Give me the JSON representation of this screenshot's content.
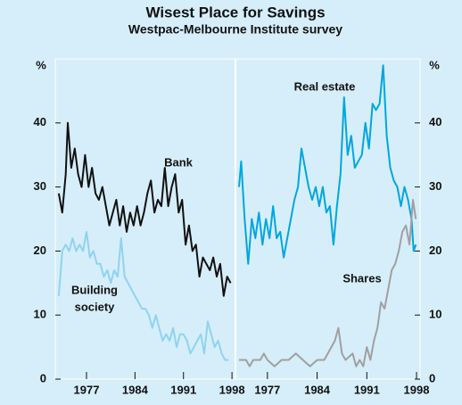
{
  "chart_data": [
    {
      "type": "line",
      "title": "Wisest Place for Savings",
      "subtitle": "Westpac-Melbourne Institute survey",
      "ylabel": "%",
      "xlim": [
        1972.5,
        1998.5
      ],
      "ylim": [
        0,
        50
      ],
      "xticks": [
        1977,
        1984,
        1991,
        1998
      ],
      "yticks": [
        0,
        10,
        20,
        30,
        40
      ],
      "series": [
        {
          "name": "Bank",
          "color": "#111111",
          "x": [
            1973,
            1973.5,
            1974,
            1974.3,
            1974.8,
            1975.3,
            1975.8,
            1976.3,
            1976.8,
            1977.3,
            1977.8,
            1978.3,
            1978.8,
            1979.3,
            1979.8,
            1980.3,
            1980.8,
            1981.3,
            1981.8,
            1982.3,
            1982.8,
            1983.3,
            1983.8,
            1984.3,
            1984.8,
            1985.3,
            1985.8,
            1986.3,
            1986.8,
            1987.3,
            1987.8,
            1988.3,
            1988.8,
            1989.3,
            1989.8,
            1990.3,
            1990.8,
            1991.3,
            1991.8,
            1992.3,
            1992.8,
            1993.3,
            1993.8,
            1994.3,
            1994.8,
            1995.3,
            1995.8,
            1996.3,
            1996.8,
            1997.3,
            1997.8
          ],
          "values": [
            29,
            26,
            32,
            40,
            33,
            36,
            32,
            30,
            35,
            30,
            33,
            29,
            28,
            30,
            27,
            24,
            26,
            28,
            24,
            27,
            23,
            26,
            24,
            27,
            24,
            26,
            29,
            31,
            26,
            28,
            27,
            33,
            27,
            30,
            32,
            26,
            28,
            21,
            24,
            20,
            21,
            16,
            19,
            18,
            17,
            19,
            16,
            18,
            13,
            16,
            15
          ]
        },
        {
          "name": "Building society",
          "color": "#8fd3f0",
          "x": [
            1973,
            1973.5,
            1974,
            1974.5,
            1975,
            1975.5,
            1976,
            1976.5,
            1977,
            1977.5,
            1978,
            1978.5,
            1979,
            1979.5,
            1980,
            1980.5,
            1981,
            1981.5,
            1982,
            1982.5,
            1983,
            1983.5,
            1984,
            1984.5,
            1985,
            1985.5,
            1986,
            1986.5,
            1987,
            1987.5,
            1988,
            1988.5,
            1989,
            1989.5,
            1990,
            1990.5,
            1991,
            1991.5,
            1992,
            1992.5,
            1993,
            1993.5,
            1994,
            1994.5,
            1995,
            1995.5,
            1996,
            1996.5,
            1997,
            1997.5
          ],
          "values": [
            13,
            20,
            21,
            20,
            22,
            20,
            21,
            20,
            23,
            19,
            20,
            18,
            18,
            16,
            17,
            15,
            17,
            16,
            22,
            16,
            15,
            14,
            13,
            12,
            11,
            11,
            10,
            8,
            10,
            8,
            6,
            7,
            6,
            8,
            5,
            7,
            7,
            6,
            4,
            5,
            6,
            7,
            4,
            9,
            7,
            5,
            6,
            4,
            3,
            3
          ]
        }
      ],
      "annotations": [
        {
          "text": "Bank"
        },
        {
          "lines": [
            "Building",
            "society"
          ]
        }
      ]
    },
    {
      "type": "line",
      "ylabel": "%",
      "xlim": [
        1972.5,
        1998.5
      ],
      "ylim": [
        0,
        50
      ],
      "xticks": [
        1977,
        1984,
        1991,
        1998
      ],
      "yticks": [
        0,
        10,
        20,
        30,
        40
      ],
      "series": [
        {
          "name": "Real estate",
          "color": "#00a6e0",
          "x": [
            1973,
            1973.3,
            1973.8,
            1974.3,
            1974.8,
            1975.3,
            1975.8,
            1976.3,
            1976.8,
            1977.3,
            1977.8,
            1978.3,
            1978.8,
            1979.3,
            1979.8,
            1980.3,
            1980.8,
            1981.3,
            1981.8,
            1982.3,
            1982.8,
            1983.3,
            1983.8,
            1984.3,
            1984.8,
            1985.3,
            1985.8,
            1986.3,
            1986.8,
            1987.3,
            1987.8,
            1988.3,
            1988.8,
            1989.3,
            1989.8,
            1990.3,
            1990.8,
            1991.3,
            1991.8,
            1992.3,
            1992.8,
            1993.3,
            1993.8,
            1994.3,
            1994.8,
            1995.3,
            1995.8,
            1996.3,
            1996.8,
            1997.3,
            1997.6,
            1997.9
          ],
          "values": [
            30,
            34,
            25,
            18,
            25,
            22,
            26,
            21,
            25,
            22,
            27,
            22,
            23,
            19,
            22,
            25,
            28,
            30,
            36,
            33,
            30,
            28,
            30,
            27,
            30,
            26,
            27,
            21,
            27,
            32,
            44,
            35,
            38,
            33,
            34,
            35,
            40,
            36,
            43,
            42,
            43,
            49,
            38,
            33,
            31,
            30,
            27,
            30,
            28,
            25,
            20,
            21
          ]
        },
        {
          "name": "Shares",
          "color": "#a0a0a0",
          "x": [
            1973,
            1974,
            1974.5,
            1975,
            1976,
            1976.5,
            1977,
            1978,
            1979,
            1980,
            1981,
            1982,
            1983,
            1984,
            1985,
            1986,
            1986.5,
            1987,
            1987.5,
            1988,
            1989,
            1989.5,
            1990,
            1990.5,
            1991,
            1991.5,
            1992,
            1992.5,
            1993,
            1993.5,
            1994,
            1994.5,
            1995,
            1995.5,
            1996,
            1996.5,
            1997,
            1997.5,
            1997.9
          ],
          "values": [
            3,
            3,
            2,
            3,
            3,
            4,
            3,
            2,
            3,
            3,
            4,
            3,
            2,
            3,
            3,
            5,
            6,
            8,
            4,
            3,
            4,
            2,
            3,
            2,
            5,
            3,
            6,
            8,
            12,
            11,
            14,
            17,
            18,
            20,
            23,
            24,
            21,
            28,
            25
          ]
        }
      ],
      "annotations": [
        {
          "text": "Real estate"
        },
        {
          "text": "Shares"
        }
      ]
    }
  ]
}
